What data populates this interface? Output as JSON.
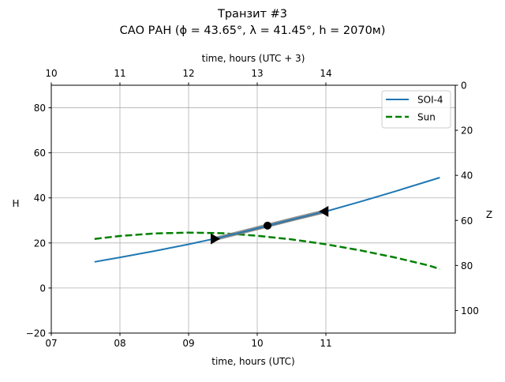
{
  "chart_data": {
    "type": "line",
    "title": "Транзит #3",
    "subtitle": "САО РАН (ϕ = 43.65°, λ = 41.45°, h = 2070м)",
    "xlabel": "time, hours (UTC)",
    "xlabel_top": "time, hours (UTC + 3)",
    "ylabel": "H",
    "ylabel_right": "Z",
    "xlim": [
      7.0,
      12.885
    ],
    "ylim": [
      -20,
      90
    ],
    "ylim_right": [
      110,
      0
    ],
    "xticks": [
      {
        "v": 7,
        "label": "07"
      },
      {
        "v": 8,
        "label": "08"
      },
      {
        "v": 9,
        "label": "09"
      },
      {
        "v": 10,
        "label": "10"
      },
      {
        "v": 11,
        "label": "11"
      }
    ],
    "xticks_top": [
      {
        "v": 7,
        "label": "10"
      },
      {
        "v": 8,
        "label": "11"
      },
      {
        "v": 9,
        "label": "12"
      },
      {
        "v": 10,
        "label": "13"
      },
      {
        "v": 11,
        "label": "14"
      }
    ],
    "yticks": [
      -20,
      0,
      20,
      40,
      60,
      80
    ],
    "yticks_right": [
      0,
      20,
      40,
      60,
      80,
      100
    ],
    "grid": true,
    "legend_position": "top-right",
    "series": [
      {
        "name": "SOI-4",
        "color": "#1f77b4",
        "style": "solid",
        "x": [
          7.63,
          8.0,
          8.5,
          9.0,
          9.5,
          10.0,
          10.5,
          11.0,
          11.5,
          12.0,
          12.66
        ],
        "y": [
          11.6,
          13.6,
          16.4,
          19.4,
          22.7,
          26.2,
          30.0,
          34.0,
          38.3,
          42.8,
          49.0
        ]
      },
      {
        "name": "Sun",
        "color": "#008000",
        "style": "dashed",
        "x": [
          7.63,
          8.0,
          8.5,
          9.0,
          9.5,
          10.0,
          10.5,
          11.0,
          11.5,
          12.0,
          12.5,
          12.66
        ],
        "y": [
          21.8,
          23.1,
          24.2,
          24.6,
          24.3,
          23.2,
          21.6,
          19.4,
          16.7,
          13.6,
          10.0,
          8.4
        ]
      }
    ],
    "transit": {
      "color": "#808080",
      "x": [
        9.38,
        9.75,
        10.15,
        10.55,
        10.98
      ],
      "y": [
        21.8,
        24.6,
        27.7,
        30.8,
        34.0
      ],
      "start": {
        "x": 9.38,
        "y": 21.8,
        "marker": "triangle-right"
      },
      "mid": {
        "x": 10.15,
        "y": 27.7,
        "marker": "circle"
      },
      "end": {
        "x": 10.98,
        "y": 34.0,
        "marker": "triangle-left"
      }
    }
  }
}
